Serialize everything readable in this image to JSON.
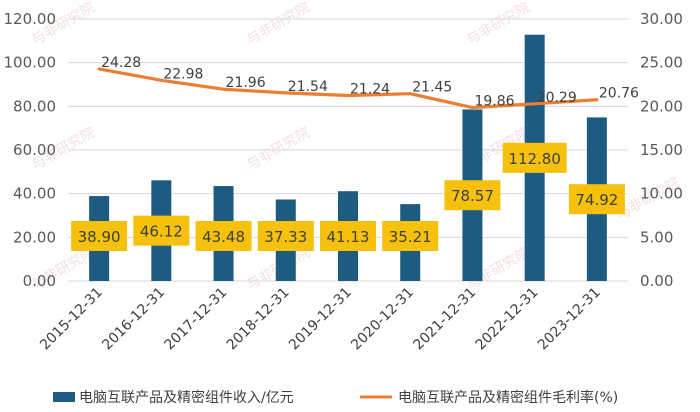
{
  "chart_data": {
    "type": "bar+line",
    "categories": [
      "2015-12-31",
      "2016-12-31",
      "2017-12-31",
      "2018-12-31",
      "2019-12-31",
      "2020-12-31",
      "2021-12-31",
      "2022-12-31",
      "2023-12-31"
    ],
    "series": [
      {
        "name": "电脑互联产品及精密组件收入/亿元",
        "type": "bar",
        "axis": "left",
        "values": [
          38.9,
          46.12,
          43.48,
          37.33,
          41.13,
          35.21,
          78.57,
          112.8,
          74.92
        ],
        "labels": [
          "38.90",
          "46.12",
          "43.48",
          "37.33",
          "41.13",
          "35.21",
          "78.57",
          "112.80",
          "74.92"
        ],
        "color": "#1d5c80",
        "label_bg": "#f5c10d"
      },
      {
        "name": "电脑互联产品及精密组件毛利率(%)",
        "type": "line",
        "axis": "right",
        "values": [
          24.28,
          22.98,
          21.96,
          21.54,
          21.24,
          21.45,
          19.86,
          20.29,
          20.76
        ],
        "labels": [
          "24.28",
          "22.98",
          "21.96",
          "21.54",
          "21.24",
          "21.45",
          "19.86",
          "20.29",
          "20.76"
        ],
        "color": "#ed7d31"
      }
    ],
    "y_left": {
      "min": 0,
      "max": 120,
      "ticks": [
        "0.00",
        "20.00",
        "40.00",
        "60.00",
        "80.00",
        "100.00",
        "120.00"
      ]
    },
    "y_right": {
      "min": 0,
      "max": 30,
      "ticks": [
        "0.00",
        "5.00",
        "10.00",
        "15.00",
        "20.00",
        "25.00",
        "30.00"
      ]
    },
    "grid": true,
    "legend_position": "bottom"
  },
  "watermark": "与非研究院"
}
